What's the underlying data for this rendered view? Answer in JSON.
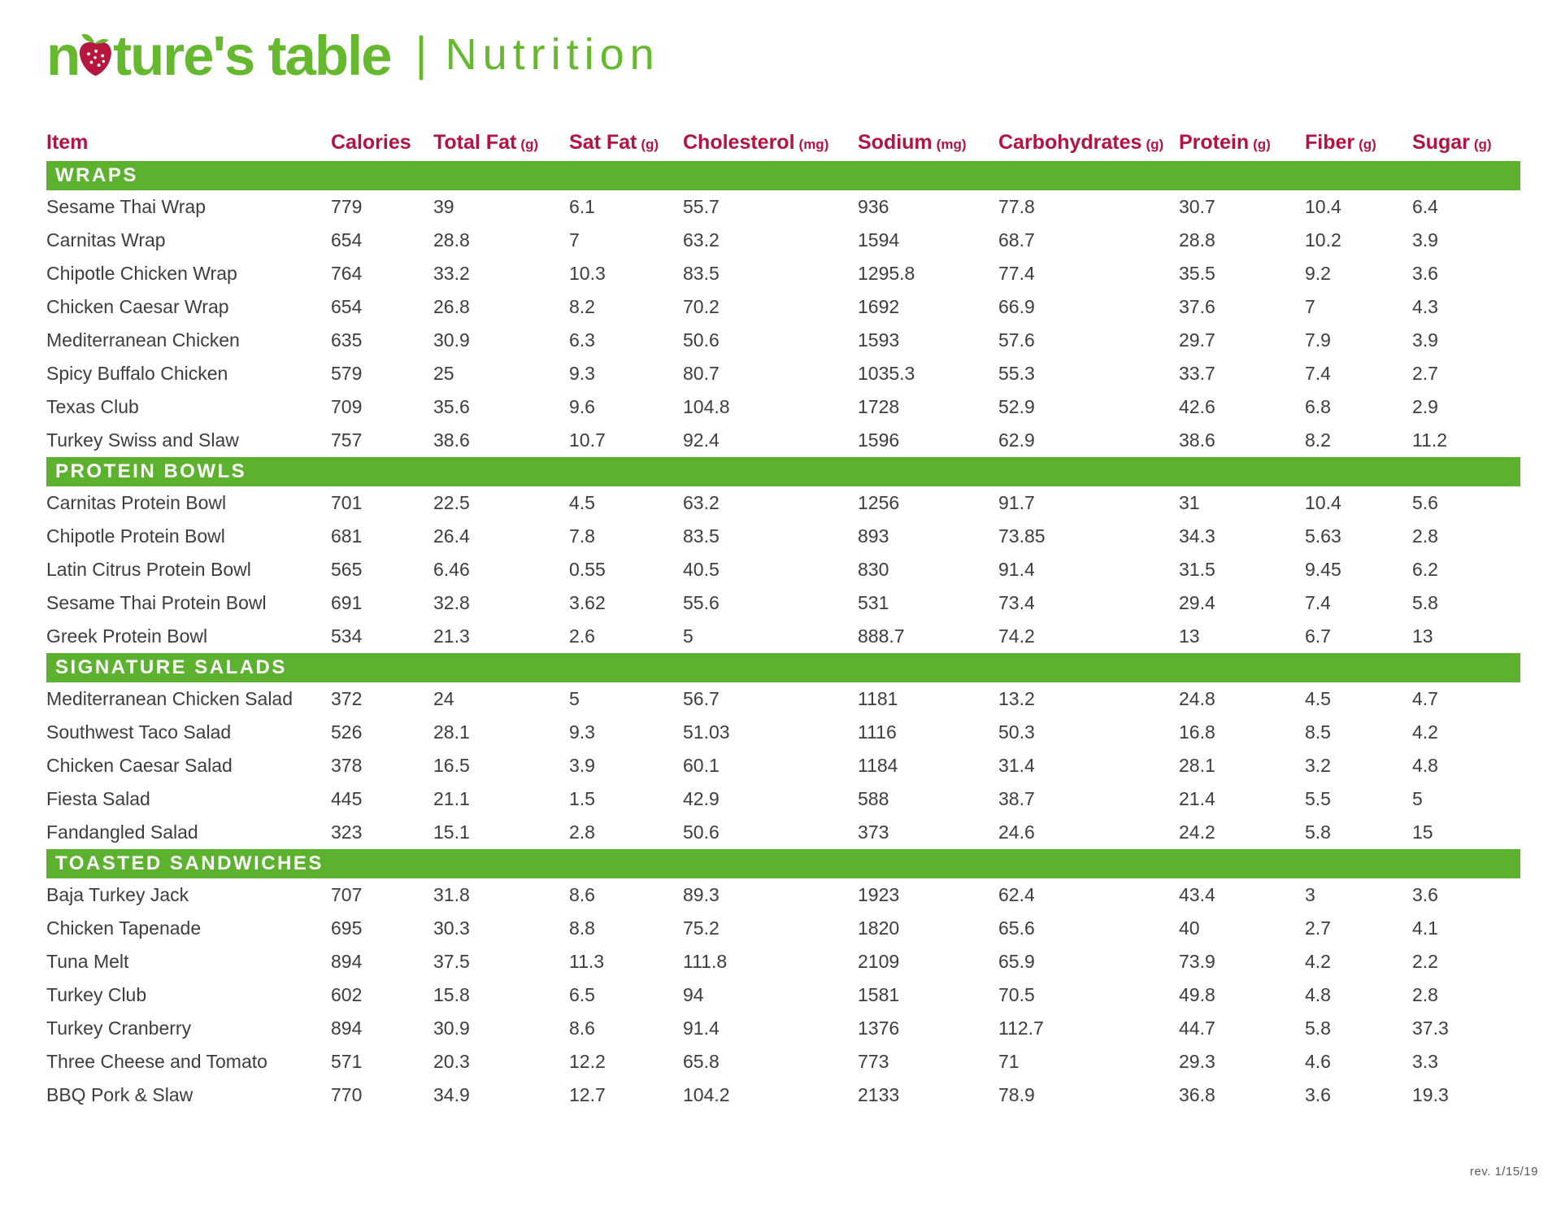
{
  "brand": {
    "name_prefix": "n",
    "name_suffix": "ture's table",
    "separator": "|",
    "page_title": "Nutrition"
  },
  "colors": {
    "brand_green": "#66b92f",
    "band_green": "#5cb22e",
    "header_red": "#b41341",
    "strawberry_red": "#b5173f"
  },
  "columns": [
    {
      "label": "Item",
      "unit": ""
    },
    {
      "label": "Calories",
      "unit": ""
    },
    {
      "label": "Total Fat",
      "unit": "(g)"
    },
    {
      "label": "Sat Fat",
      "unit": "(g)"
    },
    {
      "label": "Cholesterol",
      "unit": "(mg)"
    },
    {
      "label": "Sodium",
      "unit": "(mg)"
    },
    {
      "label": "Carbohydrates",
      "unit": "(g)"
    },
    {
      "label": "Protein",
      "unit": "(g)"
    },
    {
      "label": "Fiber",
      "unit": "(g)"
    },
    {
      "label": "Sugar",
      "unit": "(g)"
    }
  ],
  "sections": [
    {
      "title": "WRAPS",
      "rows": [
        {
          "item": "Sesame Thai Wrap",
          "values": [
            "779",
            "39",
            "6.1",
            "55.7",
            "936",
            "77.8",
            "30.7",
            "10.4",
            "6.4"
          ]
        },
        {
          "item": "Carnitas Wrap",
          "values": [
            "654",
            "28.8",
            "7",
            "63.2",
            "1594",
            "68.7",
            "28.8",
            "10.2",
            "3.9"
          ]
        },
        {
          "item": "Chipotle Chicken Wrap",
          "values": [
            "764",
            "33.2",
            "10.3",
            "83.5",
            "1295.8",
            "77.4",
            "35.5",
            "9.2",
            "3.6"
          ]
        },
        {
          "item": "Chicken Caesar Wrap",
          "values": [
            "654",
            "26.8",
            "8.2",
            "70.2",
            "1692",
            "66.9",
            "37.6",
            "7",
            "4.3"
          ]
        },
        {
          "item": "Mediterranean Chicken",
          "values": [
            "635",
            "30.9",
            "6.3",
            "50.6",
            "1593",
            "57.6",
            "29.7",
            "7.9",
            "3.9"
          ]
        },
        {
          "item": "Spicy Buffalo Chicken",
          "values": [
            "579",
            "25",
            "9.3",
            "80.7",
            "1035.3",
            "55.3",
            "33.7",
            "7.4",
            "2.7"
          ]
        },
        {
          "item": "Texas Club",
          "values": [
            "709",
            "35.6",
            "9.6",
            "104.8",
            "1728",
            "52.9",
            "42.6",
            "6.8",
            "2.9"
          ]
        },
        {
          "item": "Turkey Swiss and Slaw",
          "values": [
            "757",
            "38.6",
            "10.7",
            "92.4",
            "1596",
            "62.9",
            "38.6",
            "8.2",
            "11.2"
          ]
        }
      ]
    },
    {
      "title": "PROTEIN BOWLS",
      "rows": [
        {
          "item": "Carnitas Protein Bowl",
          "values": [
            "701",
            "22.5",
            "4.5",
            "63.2",
            "1256",
            "91.7",
            "31",
            "10.4",
            "5.6"
          ]
        },
        {
          "item": "Chipotle Protein Bowl",
          "values": [
            "681",
            "26.4",
            "7.8",
            "83.5",
            "893",
            "73.85",
            "34.3",
            "5.63",
            "2.8"
          ]
        },
        {
          "item": "Latin Citrus Protein Bowl",
          "values": [
            "565",
            "6.46",
            "0.55",
            "40.5",
            "830",
            "91.4",
            "31.5",
            "9.45",
            "6.2"
          ]
        },
        {
          "item": "Sesame Thai Protein Bowl",
          "values": [
            "691",
            "32.8",
            "3.62",
            "55.6",
            "531",
            "73.4",
            "29.4",
            "7.4",
            "5.8"
          ]
        },
        {
          "item": "Greek Protein Bowl",
          "values": [
            "534",
            "21.3",
            "2.6",
            "5",
            "888.7",
            "74.2",
            "13",
            "6.7",
            "13"
          ]
        }
      ]
    },
    {
      "title": "SIGNATURE SALADS",
      "rows": [
        {
          "item": "Mediterranean Chicken Salad",
          "values": [
            "372",
            "24",
            "5",
            "56.7",
            "1181",
            "13.2",
            "24.8",
            "4.5",
            "4.7"
          ]
        },
        {
          "item": "Southwest Taco Salad",
          "values": [
            "526",
            "28.1",
            "9.3",
            "51.03",
            "1116",
            "50.3",
            "16.8",
            "8.5",
            "4.2"
          ]
        },
        {
          "item": "Chicken Caesar Salad",
          "values": [
            "378",
            "16.5",
            "3.9",
            "60.1",
            "1184",
            "31.4",
            "28.1",
            "3.2",
            "4.8"
          ]
        },
        {
          "item": "Fiesta Salad",
          "values": [
            "445",
            "21.1",
            "1.5",
            "42.9",
            "588",
            "38.7",
            "21.4",
            "5.5",
            "5"
          ]
        },
        {
          "item": "Fandangled Salad",
          "values": [
            "323",
            "15.1",
            "2.8",
            "50.6",
            "373",
            "24.6",
            "24.2",
            "5.8",
            "15"
          ]
        }
      ]
    },
    {
      "title": "TOASTED SANDWICHES",
      "rows": [
        {
          "item": "Baja Turkey Jack",
          "values": [
            "707",
            "31.8",
            "8.6",
            "89.3",
            "1923",
            "62.4",
            "43.4",
            "3",
            "3.6"
          ]
        },
        {
          "item": "Chicken Tapenade",
          "values": [
            "695",
            "30.3",
            "8.8",
            "75.2",
            "1820",
            "65.6",
            "40",
            "2.7",
            "4.1"
          ]
        },
        {
          "item": "Tuna Melt",
          "values": [
            "894",
            "37.5",
            "11.3",
            "111.8",
            "2109",
            "65.9",
            "73.9",
            "4.2",
            "2.2"
          ]
        },
        {
          "item": "Turkey Club",
          "values": [
            "602",
            "15.8",
            "6.5",
            "94",
            "1581",
            "70.5",
            "49.8",
            "4.8",
            "2.8"
          ]
        },
        {
          "item": "Turkey Cranberry",
          "values": [
            "894",
            "30.9",
            "8.6",
            "91.4",
            "1376",
            "112.7",
            "44.7",
            "5.8",
            "37.3"
          ]
        },
        {
          "item": "Three Cheese and Tomato",
          "values": [
            "571",
            "20.3",
            "12.2",
            "65.8",
            "773",
            "71",
            "29.3",
            "4.6",
            "3.3"
          ]
        },
        {
          "item": "BBQ Pork & Slaw",
          "values": [
            "770",
            "34.9",
            "12.7",
            "104.2",
            "2133",
            "78.9",
            "36.8",
            "3.6",
            "19.3"
          ]
        }
      ]
    }
  ],
  "footer": {
    "revision": "rev. 1/15/19"
  }
}
